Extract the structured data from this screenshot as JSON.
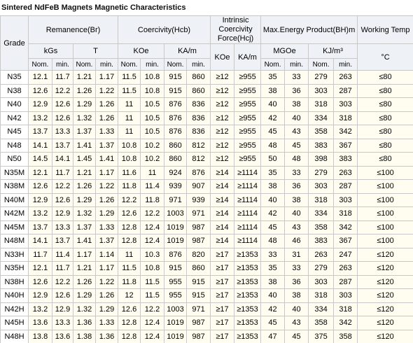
{
  "title": "Sintered  NdFeB  Magnets Magnetic Characteristics",
  "header": {
    "grade": "Grade",
    "groups": [
      "Remanence(Br)",
      "Coercivity(Hcb)",
      "Intrinsic Coercivity Force(Hcj)",
      "Max.Energy Product(BH)m",
      "Working Temp"
    ],
    "units": [
      "kGs",
      "T",
      "KOe",
      "KA/m",
      "KOe",
      "KA/m",
      "MGOe",
      "KJ/m³",
      "°C"
    ],
    "sub": [
      "Nom.",
      "min.",
      "Nom.",
      "min.",
      "Nom.",
      "min.",
      "Nom.",
      "min.",
      "Nom.",
      "min.",
      "Nom.",
      "min."
    ]
  },
  "rows": [
    {
      "grade": "N35",
      "values": [
        12.1,
        11.7,
        1.21,
        1.17,
        11.5,
        10.8,
        915,
        860,
        "≥12",
        "≥955",
        35,
        33,
        279,
        263,
        "≤80"
      ]
    },
    {
      "grade": "N38",
      "values": [
        12.6,
        12.2,
        1.26,
        1.22,
        11.5,
        10.8,
        915,
        860,
        "≥12",
        "≥955",
        38,
        36,
        303,
        287,
        "≤80"
      ]
    },
    {
      "grade": "N40",
      "values": [
        12.9,
        12.6,
        1.29,
        1.26,
        11,
        10.5,
        876,
        836,
        "≥12",
        "≥955",
        40,
        38,
        318,
        303,
        "≤80"
      ]
    },
    {
      "grade": "N42",
      "values": [
        13.2,
        12.6,
        1.32,
        1.26,
        11,
        10.5,
        876,
        836,
        "≥12",
        "≥955",
        42,
        40,
        334,
        318,
        "≤80"
      ]
    },
    {
      "grade": "N45",
      "values": [
        13.7,
        13.3,
        1.37,
        1.33,
        11,
        10.5,
        876,
        836,
        "≥12",
        "≥955",
        45,
        43,
        358,
        342,
        "≤80"
      ]
    },
    {
      "grade": "N48",
      "values": [
        14.1,
        13.7,
        1.41,
        1.37,
        10.8,
        10.2,
        860,
        812,
        "≥12",
        "≥955",
        48,
        45,
        383,
        367,
        "≤80"
      ]
    },
    {
      "grade": "N50",
      "values": [
        14.5,
        14.1,
        1.45,
        1.41,
        10.8,
        10.2,
        860,
        812,
        "≥12",
        "≥955",
        50,
        48,
        398,
        383,
        "≤80"
      ]
    },
    {
      "grade": "N35M",
      "values": [
        12.1,
        11.7,
        1.21,
        1.17,
        11.6,
        11,
        924,
        876,
        "≥14",
        "≥1114",
        35,
        33,
        279,
        263,
        "≤100"
      ]
    },
    {
      "grade": "N38M",
      "values": [
        12.6,
        12.2,
        1.26,
        1.22,
        11.8,
        11.4,
        939,
        907,
        "≥14",
        "≥1114",
        38,
        36,
        303,
        287,
        "≤100"
      ]
    },
    {
      "grade": "N40M",
      "values": [
        12.9,
        12.6,
        1.29,
        1.26,
        12.2,
        11.8,
        971,
        939,
        "≥14",
        "≥1114",
        40,
        38,
        318,
        303,
        "≤100"
      ]
    },
    {
      "grade": "N42M",
      "values": [
        13.2,
        12.9,
        1.32,
        1.29,
        12.6,
        12.2,
        1003,
        971,
        "≥14",
        "≥1114",
        42,
        40,
        334,
        318,
        "≤100"
      ]
    },
    {
      "grade": "N45M",
      "values": [
        13.7,
        13.3,
        1.37,
        1.33,
        12.8,
        12.4,
        1019,
        987,
        "≥14",
        "≥1114",
        45,
        43,
        358,
        342,
        "≤100"
      ]
    },
    {
      "grade": "N48M",
      "values": [
        14.1,
        13.7,
        1.41,
        1.37,
        12.8,
        12.4,
        1019,
        987,
        "≥14",
        "≥1114",
        48,
        46,
        383,
        367,
        "≤100"
      ]
    },
    {
      "grade": "N33H",
      "values": [
        11.7,
        11.4,
        1.17,
        1.14,
        11,
        10.3,
        876,
        820,
        "≥17",
        "≥1353",
        33,
        31,
        263,
        247,
        "≤120"
      ]
    },
    {
      "grade": "N35H",
      "values": [
        12.1,
        11.7,
        1.21,
        1.17,
        11.5,
        10.8,
        915,
        860,
        "≥17",
        "≥1353",
        35,
        33,
        279,
        263,
        "≤120"
      ]
    },
    {
      "grade": "N38H",
      "values": [
        12.6,
        12.2,
        1.26,
        1.22,
        11.8,
        11.5,
        955,
        915,
        "≥17",
        "≥1353",
        38,
        36,
        303,
        287,
        "≤120"
      ]
    },
    {
      "grade": "N40H",
      "values": [
        12.9,
        12.6,
        1.29,
        1.26,
        12,
        11.5,
        955,
        915,
        "≥17",
        "≥1353",
        40,
        38,
        318,
        303,
        "≤120"
      ]
    },
    {
      "grade": "N42H",
      "values": [
        13.2,
        12.9,
        1.32,
        1.29,
        12.6,
        12.2,
        1003,
        971,
        "≥17",
        "≥1353",
        42,
        40,
        334,
        318,
        "≤120"
      ]
    },
    {
      "grade": "N45H",
      "values": [
        13.6,
        13.3,
        1.36,
        1.33,
        12.8,
        12.4,
        1019,
        987,
        "≥17",
        "≥1353",
        45,
        43,
        358,
        342,
        "≤120"
      ]
    },
    {
      "grade": "N48H",
      "values": [
        13.8,
        13.6,
        1.38,
        1.36,
        12.8,
        12.4,
        1019,
        987,
        "≥17",
        "≥1353",
        47,
        45,
        375,
        358,
        "≤120"
      ]
    }
  ]
}
